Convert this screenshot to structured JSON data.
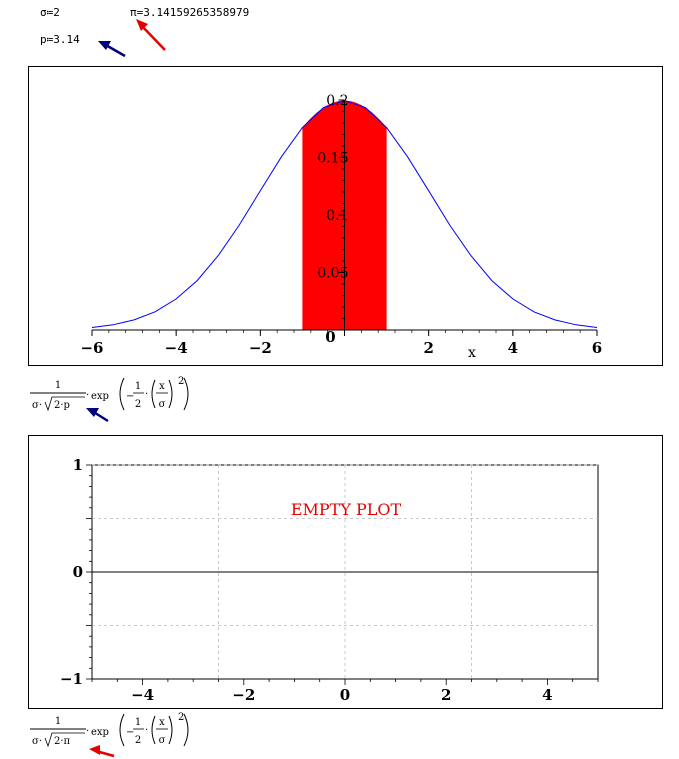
{
  "worksheet": {
    "sigma_def": "σ≔2",
    "pi_def": "π=3.14159265358979",
    "p_def": "p≔3.14",
    "expr1": {
      "num": "1",
      "den_a": "σ·",
      "den_b": "2·p",
      "exp_label": "exp",
      "inner_num": "1",
      "inner_den": "2",
      "x_num": "x",
      "x_den": "σ",
      "power": "2",
      "minus": "−",
      "dot": "·"
    },
    "expr2": {
      "num": "1",
      "den_a": "σ·",
      "den_b": "2·π",
      "exp_label": "exp",
      "inner_num": "1",
      "inner_den": "2",
      "x_num": "x",
      "x_den": "σ",
      "power": "2",
      "minus": "−",
      "dot": "·"
    }
  },
  "annotations": {
    "arrow_red": "#e60000",
    "arrow_blue": "#000080"
  },
  "chart_data": [
    {
      "type": "line",
      "series": [
        {
          "color": "#0000ff",
          "x": [
            -6,
            -5.5,
            -5,
            -4.5,
            -4,
            -3.5,
            -3,
            -2.5,
            -2,
            -1.5,
            -1,
            -0.5,
            0,
            0.5,
            1,
            1.5,
            2,
            2.5,
            3,
            3.5,
            4,
            4.5,
            5,
            5.5,
            6
          ],
          "y": [
            0.0022,
            0.0045,
            0.0088,
            0.0158,
            0.027,
            0.043,
            0.0648,
            0.0913,
            0.121,
            0.1506,
            0.176,
            0.1934,
            0.1995,
            0.1934,
            0.176,
            0.1506,
            0.121,
            0.0913,
            0.0648,
            0.043,
            0.027,
            0.0158,
            0.0088,
            0.0045,
            0.0022
          ]
        }
      ],
      "shaded_region": {
        "x_from": -1,
        "x_to": 1,
        "color": "#ff0000"
      },
      "x_ticks": [
        "−6",
        "−4",
        "−2",
        "0",
        "2",
        "4",
        "6"
      ],
      "y_ticks": [
        "0.05",
        "0.1",
        "0.15",
        "0.2"
      ],
      "xlabel": "x",
      "xlim": [
        -6,
        6
      ],
      "ylim": [
        0,
        0.2
      ]
    },
    {
      "type": "line",
      "series": [],
      "annotation": "EMPTY PLOT",
      "annotation_color": "#e60000",
      "x_ticks": [
        "−4",
        "−2",
        "0",
        "2",
        "4"
      ],
      "y_ticks": [
        "−1",
        "0",
        "1"
      ],
      "xlim": [
        -5,
        5
      ],
      "ylim": [
        -1,
        1
      ],
      "grid": true
    }
  ]
}
